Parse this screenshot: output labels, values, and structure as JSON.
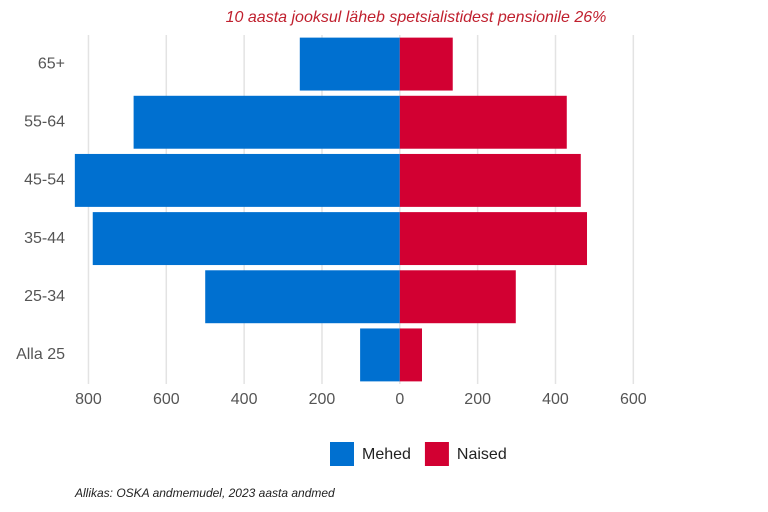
{
  "chart_data": {
    "type": "bar",
    "orientation": "horizontal",
    "stacked": true,
    "title": "10 aasta jooksul läheb spetsialistidest pensionile 26%",
    "caption": "Allikas: OSKA andmemudel, 2023 aasta andmed",
    "categories": [
      "65+",
      "55-64",
      "45-54",
      "35-44",
      "25-34",
      "Alla 25"
    ],
    "series": [
      {
        "name": "Mehed",
        "color": "#0070d0",
        "values": [
          -257,
          -684,
          -835,
          -789,
          -500,
          -102
        ]
      },
      {
        "name": "Naised",
        "color": "#d20032",
        "values": [
          136,
          429,
          465,
          481,
          298,
          57
        ]
      }
    ],
    "xlim": [
      -850,
      630
    ],
    "xticks": [
      {
        "value": -800,
        "label": "800"
      },
      {
        "value": -600,
        "label": "600"
      },
      {
        "value": -400,
        "label": "400"
      },
      {
        "value": -200,
        "label": "200"
      },
      0,
      200,
      400,
      600
    ],
    "grid": true,
    "legend": "bottom"
  }
}
